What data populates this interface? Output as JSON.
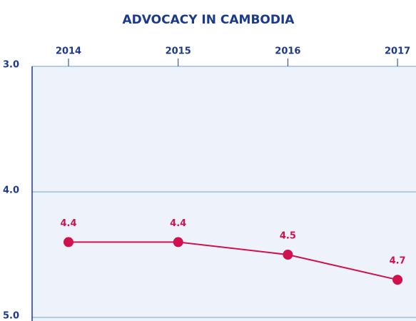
{
  "chart_data": {
    "type": "line",
    "title": "ADVOCACY IN CAMBODIA",
    "categories": [
      "2014",
      "2015",
      "2016",
      "2017"
    ],
    "series": [
      {
        "color": "#d0114d",
        "values": [
          4.4,
          4.4,
          4.5,
          4.7
        ]
      }
    ],
    "ylim": [
      5,
      3
    ],
    "yticks": [
      {
        "value": 3,
        "label": "3.0"
      },
      {
        "value": 4,
        "label": "4.0"
      },
      {
        "value": 5,
        "label": "5.0"
      }
    ],
    "grid": true
  }
}
